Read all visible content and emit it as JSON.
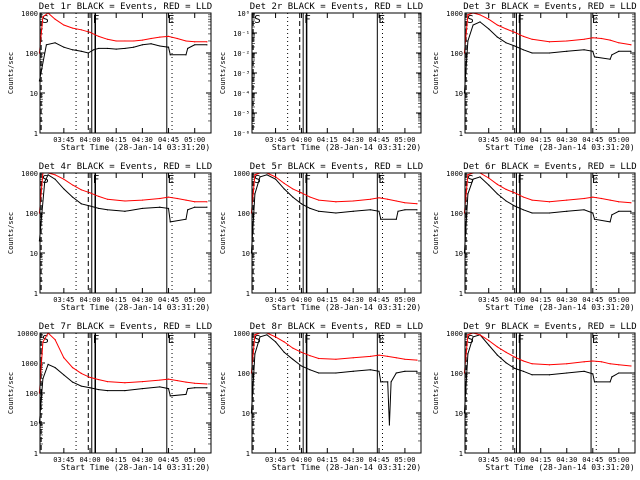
{
  "colors": {
    "events": "#000000",
    "lld": "#ff0000",
    "background": "#ffffff"
  },
  "common": {
    "xlabel": "Start Time (28-Jan-14 03:31:20)",
    "ylabel": "Counts/sec",
    "x_ticks": [
      "03:45",
      "04:00",
      "04:15",
      "04:30",
      "04:45",
      "05:00"
    ],
    "markers": [
      "S",
      "F",
      "E"
    ]
  },
  "chart_data": [
    {
      "type": "line",
      "title": "Det 1r BLACK = Events, RED = LLD",
      "y_ticks": [
        "1",
        "10",
        "100",
        "1000"
      ],
      "ylim": [
        1,
        1000
      ],
      "log": true,
      "series": [
        {
          "name": "Events",
          "x": [
            "03:31",
            "03:35",
            "03:40",
            "03:45",
            "03:50",
            "03:55",
            "03:59",
            "04:02",
            "04:05",
            "04:10",
            "04:15",
            "04:20",
            "04:25",
            "04:30",
            "04:35",
            "04:40",
            "04:45",
            "04:46",
            "04:55",
            "04:56",
            "05:00",
            "05:07"
          ],
          "values": [
            20,
            160,
            180,
            140,
            120,
            110,
            100,
            120,
            130,
            130,
            125,
            130,
            140,
            160,
            170,
            150,
            140,
            90,
            90,
            130,
            160,
            160
          ]
        },
        {
          "name": "LLD",
          "x": [
            "03:31",
            "03:33",
            "03:36",
            "03:40",
            "03:45",
            "03:50",
            "03:55",
            "04:00",
            "04:05",
            "04:10",
            "04:15",
            "04:20",
            "04:25",
            "04:30",
            "04:35",
            "04:40",
            "04:45",
            "04:50",
            "04:55",
            "05:00",
            "05:07"
          ],
          "values": [
            100,
            800,
            1000,
            700,
            500,
            420,
            380,
            330,
            260,
            220,
            200,
            200,
            200,
            210,
            230,
            250,
            260,
            230,
            200,
            190,
            190
          ]
        }
      ]
    },
    {
      "type": "line",
      "title": "Det 2r BLACK = Events, RED = LLD",
      "y_ticks": [
        "10⁻⁶",
        "10⁻⁵",
        "10⁻⁴",
        "10⁻³",
        "10⁻²",
        "10⁻¹",
        "10⁰"
      ],
      "ylim": [
        1e-06,
        1
      ],
      "log": true,
      "series": []
    },
    {
      "type": "line",
      "title": "Det 3r BLACK = Events, RED = LLD",
      "y_ticks": [
        "1",
        "10",
        "100",
        "1000"
      ],
      "ylim": [
        1,
        1000
      ],
      "log": true,
      "series": [
        {
          "name": "Events",
          "x": [
            "03:31",
            "03:33",
            "03:36",
            "03:40",
            "03:45",
            "03:50",
            "03:55",
            "04:00",
            "04:05",
            "04:10",
            "04:20",
            "04:30",
            "04:40",
            "04:45",
            "04:46",
            "04:55",
            "04:56",
            "05:00",
            "05:07"
          ],
          "values": [
            10,
            200,
            500,
            600,
            400,
            250,
            180,
            150,
            120,
            100,
            100,
            110,
            120,
            110,
            80,
            70,
            90,
            110,
            110
          ]
        },
        {
          "name": "LLD",
          "x": [
            "03:31",
            "03:33",
            "03:36",
            "03:40",
            "03:45",
            "03:50",
            "03:55",
            "04:00",
            "04:05",
            "04:10",
            "04:20",
            "04:30",
            "04:40",
            "04:45",
            "04:50",
            "04:55",
            "05:00",
            "05:07"
          ],
          "values": [
            100,
            900,
            1000,
            900,
            700,
            500,
            400,
            330,
            260,
            220,
            190,
            200,
            220,
            240,
            230,
            210,
            180,
            160
          ]
        }
      ]
    },
    {
      "type": "line",
      "title": "Det 4r BLACK = Events, RED = LLD",
      "y_ticks": [
        "1",
        "10",
        "100",
        "1000"
      ],
      "ylim": [
        1,
        1000
      ],
      "log": true,
      "series": [
        {
          "name": "Events",
          "x": [
            "03:31",
            "03:34",
            "03:36",
            "03:40",
            "03:45",
            "03:50",
            "03:55",
            "04:00",
            "04:05",
            "04:10",
            "04:20",
            "04:30",
            "04:40",
            "04:45",
            "04:46",
            "04:55",
            "04:56",
            "05:00",
            "05:07"
          ],
          "values": [
            20,
            600,
            900,
            700,
            400,
            250,
            170,
            150,
            130,
            120,
            110,
            130,
            140,
            130,
            60,
            70,
            120,
            140,
            140
          ]
        },
        {
          "name": "LLD",
          "x": [
            "03:31",
            "03:33",
            "03:36",
            "03:40",
            "03:45",
            "03:50",
            "03:55",
            "04:00",
            "04:05",
            "04:10",
            "04:20",
            "04:30",
            "04:40",
            "04:45",
            "04:50",
            "04:55",
            "05:00",
            "05:07"
          ],
          "values": [
            100,
            1000,
            1000,
            900,
            700,
            500,
            380,
            320,
            260,
            220,
            200,
            210,
            230,
            250,
            230,
            210,
            190,
            190
          ]
        }
      ]
    },
    {
      "type": "line",
      "title": "Det 5r BLACK = Events, RED = LLD",
      "y_ticks": [
        "1",
        "10",
        "100",
        "1000"
      ],
      "ylim": [
        1,
        1000
      ],
      "log": true,
      "series": [
        {
          "name": "Events",
          "x": [
            "03:31",
            "03:33",
            "03:36",
            "03:40",
            "03:45",
            "03:50",
            "03:55",
            "04:00",
            "04:05",
            "04:10",
            "04:20",
            "04:30",
            "04:40",
            "04:45",
            "04:46",
            "04:55",
            "04:56",
            "05:00",
            "05:07"
          ],
          "values": [
            10,
            300,
            800,
            900,
            700,
            400,
            250,
            170,
            130,
            110,
            100,
            110,
            120,
            110,
            70,
            70,
            110,
            120,
            120
          ]
        },
        {
          "name": "LLD",
          "x": [
            "03:31",
            "03:33",
            "03:36",
            "03:40",
            "03:45",
            "03:50",
            "03:55",
            "04:00",
            "04:05",
            "04:10",
            "04:20",
            "04:30",
            "04:40",
            "04:45",
            "04:50",
            "04:55",
            "05:00",
            "05:07"
          ],
          "values": [
            100,
            900,
            1000,
            1000,
            800,
            550,
            400,
            320,
            250,
            210,
            190,
            200,
            220,
            240,
            220,
            200,
            180,
            170
          ]
        }
      ]
    },
    {
      "type": "line",
      "title": "Det 6r BLACK = Events, RED = LLD",
      "y_ticks": [
        "1",
        "10",
        "100",
        "1000"
      ],
      "ylim": [
        1,
        1000
      ],
      "log": true,
      "series": [
        {
          "name": "Events",
          "x": [
            "03:31",
            "03:33",
            "03:36",
            "03:40",
            "03:45",
            "03:50",
            "03:55",
            "04:00",
            "04:05",
            "04:10",
            "04:20",
            "04:30",
            "04:40",
            "04:45",
            "04:46",
            "04:55",
            "04:56",
            "05:00",
            "05:07"
          ],
          "values": [
            10,
            300,
            700,
            800,
            500,
            300,
            200,
            150,
            120,
            100,
            100,
            110,
            120,
            100,
            70,
            60,
            90,
            110,
            110
          ]
        },
        {
          "name": "LLD",
          "x": [
            "03:31",
            "03:33",
            "03:36",
            "03:40",
            "03:45",
            "03:50",
            "03:55",
            "04:00",
            "04:05",
            "04:10",
            "04:20",
            "04:30",
            "04:40",
            "04:45",
            "04:50",
            "04:55",
            "05:00",
            "05:07"
          ],
          "values": [
            100,
            900,
            1000,
            1000,
            750,
            520,
            390,
            320,
            250,
            210,
            190,
            210,
            230,
            250,
            230,
            210,
            190,
            180
          ]
        }
      ]
    },
    {
      "type": "line",
      "title": "Det 7r BLACK = Events, RED = LLD",
      "y_ticks": [
        "1",
        "10",
        "100",
        "1000",
        "10000"
      ],
      "ylim": [
        1,
        10000
      ],
      "log": true,
      "series": [
        {
          "name": "Events",
          "x": [
            "03:31",
            "03:33",
            "03:36",
            "03:40",
            "03:45",
            "03:50",
            "03:55",
            "04:00",
            "04:05",
            "04:10",
            "04:20",
            "04:30",
            "04:40",
            "04:45",
            "04:46",
            "04:55",
            "04:56",
            "05:00",
            "05:07"
          ],
          "values": [
            10,
            300,
            900,
            700,
            400,
            230,
            170,
            150,
            130,
            120,
            120,
            140,
            160,
            140,
            80,
            90,
            140,
            150,
            150
          ]
        },
        {
          "name": "LLD",
          "x": [
            "03:31",
            "03:33",
            "03:36",
            "03:40",
            "03:45",
            "03:50",
            "03:55",
            "04:00",
            "04:05",
            "04:10",
            "04:20",
            "04:30",
            "04:40",
            "04:45",
            "04:50",
            "04:55",
            "05:00",
            "05:07"
          ],
          "values": [
            100,
            5000,
            10000,
            6000,
            1500,
            700,
            450,
            330,
            280,
            240,
            220,
            240,
            270,
            290,
            260,
            230,
            210,
            200
          ]
        }
      ]
    },
    {
      "type": "line",
      "title": "Det 8r BLACK = Events, RED = LLD",
      "y_ticks": [
        "1",
        "10",
        "100",
        "1000"
      ],
      "ylim": [
        1,
        1000
      ],
      "log": true,
      "series": [
        {
          "name": "Events",
          "x": [
            "03:31",
            "03:33",
            "03:36",
            "03:40",
            "03:45",
            "03:50",
            "03:55",
            "04:00",
            "04:05",
            "04:10",
            "04:20",
            "04:30",
            "04:40",
            "04:45",
            "04:46",
            "04:50",
            "04:51",
            "04:52",
            "04:55",
            "05:00",
            "05:07"
          ],
          "values": [
            10,
            300,
            800,
            900,
            600,
            330,
            220,
            150,
            120,
            100,
            100,
            110,
            120,
            110,
            60,
            60,
            5,
            60,
            100,
            110,
            110
          ]
        },
        {
          "name": "LLD",
          "x": [
            "03:31",
            "03:33",
            "03:36",
            "03:40",
            "03:45",
            "03:50",
            "03:55",
            "04:00",
            "04:05",
            "04:10",
            "04:20",
            "04:30",
            "04:40",
            "04:45",
            "04:50",
            "04:55",
            "05:00",
            "05:07"
          ],
          "values": [
            100,
            900,
            1000,
            1000,
            800,
            600,
            420,
            330,
            270,
            230,
            220,
            240,
            260,
            280,
            260,
            240,
            220,
            210
          ]
        }
      ]
    },
    {
      "type": "line",
      "title": "Det 9r BLACK = Events, RED = LLD",
      "y_ticks": [
        "1",
        "10",
        "100",
        "1000"
      ],
      "ylim": [
        1,
        1000
      ],
      "log": true,
      "series": [
        {
          "name": "Events",
          "x": [
            "03:31",
            "03:33",
            "03:36",
            "03:40",
            "03:45",
            "03:50",
            "03:55",
            "04:00",
            "04:05",
            "04:10",
            "04:20",
            "04:30",
            "04:40",
            "04:45",
            "04:46",
            "04:55",
            "04:56",
            "05:00",
            "05:07"
          ],
          "values": [
            10,
            300,
            800,
            900,
            500,
            280,
            180,
            130,
            110,
            90,
            90,
            100,
            110,
            95,
            60,
            60,
            80,
            100,
            100
          ]
        },
        {
          "name": "LLD",
          "x": [
            "03:31",
            "03:33",
            "03:36",
            "03:40",
            "03:45",
            "03:50",
            "03:55",
            "04:00",
            "04:05",
            "04:10",
            "04:20",
            "04:30",
            "04:40",
            "04:45",
            "04:50",
            "04:55",
            "05:00",
            "05:07"
          ],
          "values": [
            100,
            900,
            1000,
            900,
            650,
            450,
            330,
            250,
            200,
            170,
            160,
            170,
            190,
            200,
            190,
            170,
            160,
            150
          ]
        }
      ]
    }
  ]
}
